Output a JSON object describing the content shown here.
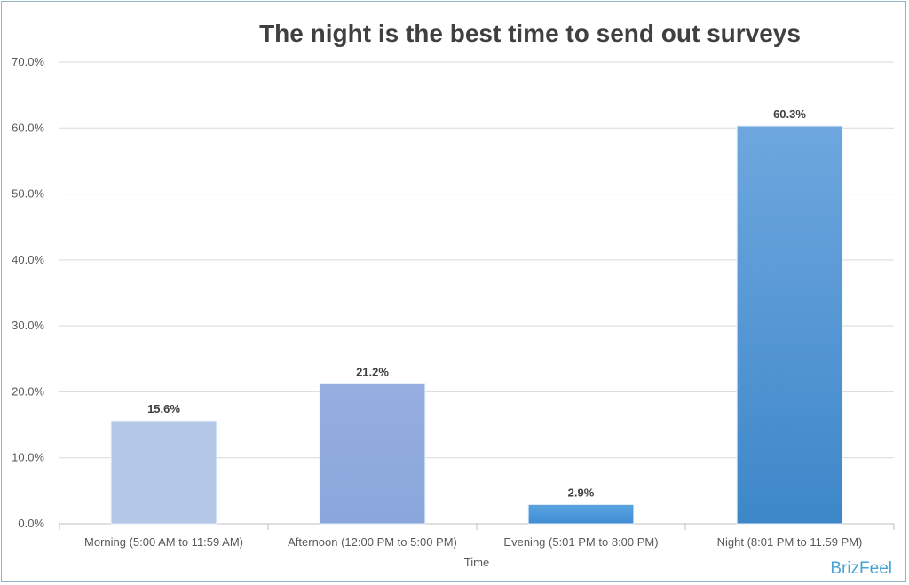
{
  "chart_data": {
    "type": "bar",
    "title": "The night is the best time to send out surveys",
    "xlabel": "Time",
    "ylabel": "",
    "categories": [
      "Morning (5:00 AM to 11:59 AM)",
      "Afternoon (12:00 PM to 5:00 PM)",
      "Evening (5:01 PM to 8:00 PM)",
      "Night (8:01 PM to 11.59 PM)"
    ],
    "values": [
      15.6,
      21.2,
      2.9,
      60.3
    ],
    "value_labels": [
      "15.6%",
      "21.2%",
      "2.9%",
      "60.3%"
    ],
    "ylim": [
      0,
      70
    ],
    "yticks": [
      "0.0%",
      "10.0%",
      "20.0%",
      "30.0%",
      "40.0%",
      "50.0%",
      "60.0%",
      "70.0%"
    ],
    "grid": true,
    "colors": {
      "bars": [
        [
          "#b4c7e7",
          "#b4c7e7"
        ],
        [
          "#96aee0",
          "#8aa6db"
        ],
        [
          "#5ba3e0",
          "#3f8dd4"
        ],
        [
          "#6ea7df",
          "#3d87c9"
        ]
      ],
      "grid": "#d9d9d9",
      "axis": "#bfbfbf"
    }
  },
  "branding": {
    "text": "BrizFeel"
  }
}
